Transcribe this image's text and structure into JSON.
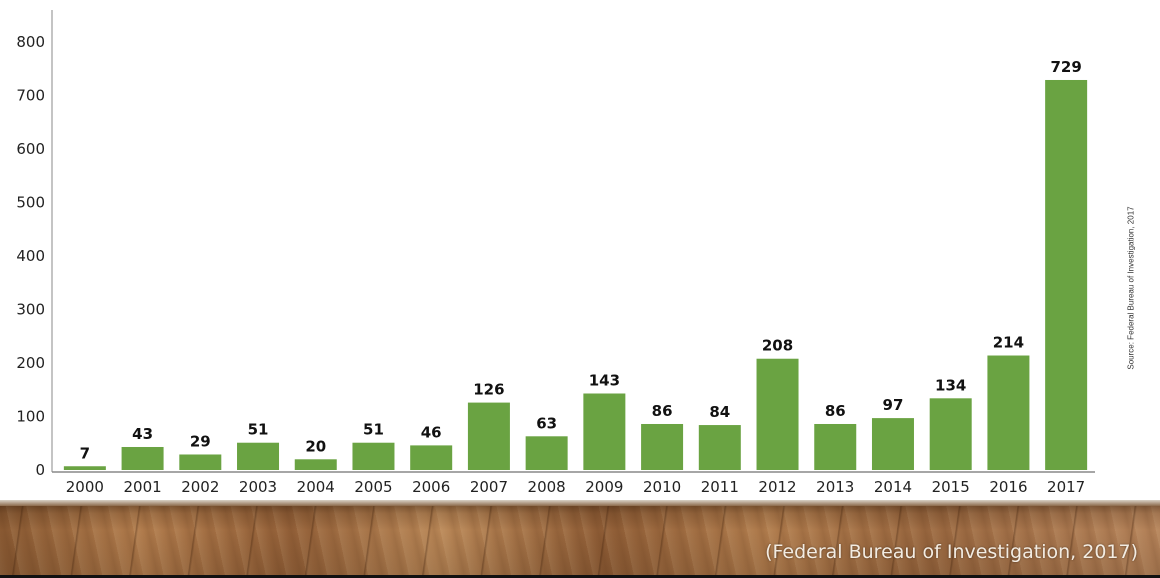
{
  "chart_data": {
    "type": "bar",
    "categories": [
      "2000",
      "2001",
      "2002",
      "2003",
      "2004",
      "2005",
      "2006",
      "2007",
      "2008",
      "2009",
      "2010",
      "2011",
      "2012",
      "2013",
      "2014",
      "2015",
      "2016",
      "2017"
    ],
    "values": [
      7,
      43,
      29,
      51,
      20,
      51,
      46,
      126,
      63,
      143,
      86,
      84,
      208,
      86,
      97,
      134,
      214,
      729
    ],
    "data_labels": [
      "7",
      "43",
      "29",
      "51",
      "20",
      "51",
      "46",
      "126",
      "63",
      "143",
      "86",
      "84",
      "208",
      "86",
      "97",
      "134",
      "214",
      "729"
    ],
    "ylim": [
      0,
      800
    ],
    "yticks": [
      0,
      100,
      200,
      300,
      400,
      500,
      600,
      700,
      800
    ],
    "ytick_labels": [
      "0",
      "100",
      "200",
      "300",
      "400",
      "500",
      "600",
      "700",
      "800"
    ],
    "title": "",
    "xlabel": "",
    "ylabel": "",
    "grid": false,
    "legend": "none",
    "bar_color": "#6aa342",
    "axis_color": "#888888"
  },
  "source_note": "Source: Federal Bureau of Investigation, 2017",
  "citation": "(Federal Bureau of Investigation, 2017)"
}
